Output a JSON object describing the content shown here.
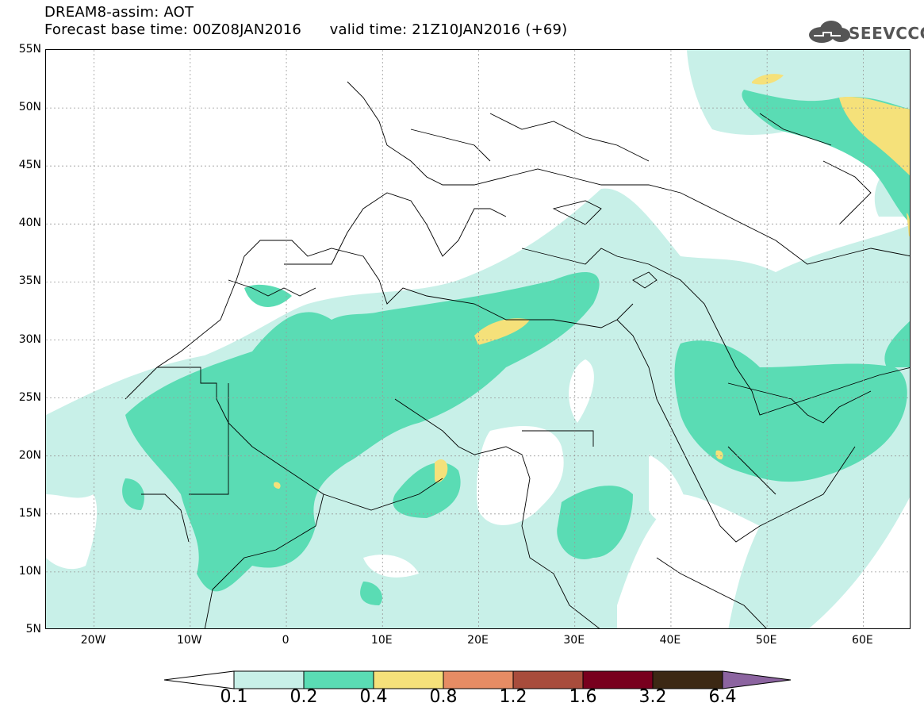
{
  "header": {
    "line1": "DREAM8-assim: AOT",
    "line2": "Forecast base time: 00Z08JAN2016      valid time: 21Z10JAN2016 (+69)"
  },
  "logo": {
    "text": "SEEVCCC",
    "icon": "cloud-icon"
  },
  "axes": {
    "lat_labels": [
      "55N",
      "50N",
      "45N",
      "40N",
      "35N",
      "30N",
      "25N",
      "20N",
      "15N",
      "10N",
      "5N"
    ],
    "lon_labels": [
      "20W",
      "10W",
      "0",
      "10E",
      "20E",
      "30E",
      "40E",
      "50E",
      "60E"
    ],
    "lon_range": [
      -25,
      65
    ],
    "lat_range": [
      5,
      55
    ]
  },
  "legend": {
    "labels": [
      "0.1",
      "0.2",
      "0.4",
      "0.8",
      "1.2",
      "1.6",
      "3.2",
      "6.4"
    ],
    "colors": [
      "#ffffff",
      "#c8f0e8",
      "#5adcb4",
      "#f5e17a",
      "#e68c64",
      "#a84c3c",
      "#78001e",
      "#3c2814",
      "#8c64a0"
    ]
  }
}
